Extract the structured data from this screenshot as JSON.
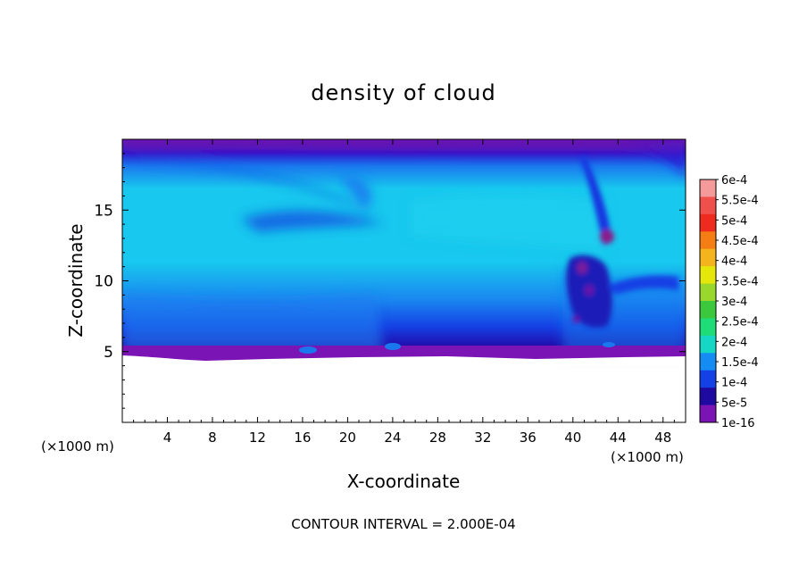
{
  "chart_data": {
    "type": "heatmap",
    "title": "density of cloud",
    "xlabel": "X-coordinate",
    "ylabel": "Z-coordinate",
    "x_unit_label": "(×1000 m)",
    "xlim": [
      0,
      50
    ],
    "ylim": [
      0,
      20
    ],
    "x_ticks": [
      4,
      8,
      12,
      16,
      20,
      24,
      28,
      32,
      36,
      40,
      44,
      48
    ],
    "y_ticks": [
      5,
      10,
      15
    ],
    "footer": "CONTOUR INTERVAL = 2.000E-04",
    "colorbar": {
      "labels": [
        "6e-4",
        "5.5e-4",
        "5e-4",
        "4.5e-4",
        "4e-4",
        "3.5e-4",
        "3e-4",
        "2.5e-4",
        "2e-4",
        "1.5e-4",
        "1e-4",
        "5e-5",
        "1e-16"
      ],
      "colors": [
        "#f59a9a",
        "#f0504b",
        "#ef2a1e",
        "#f47e14",
        "#f4b41e",
        "#e5e60a",
        "#9ad72c",
        "#3cc83c",
        "#1edc78",
        "#15d7c4",
        "#148cf4",
        "#1341e6",
        "#1e0aa0",
        "#7a14b4"
      ]
    }
  }
}
